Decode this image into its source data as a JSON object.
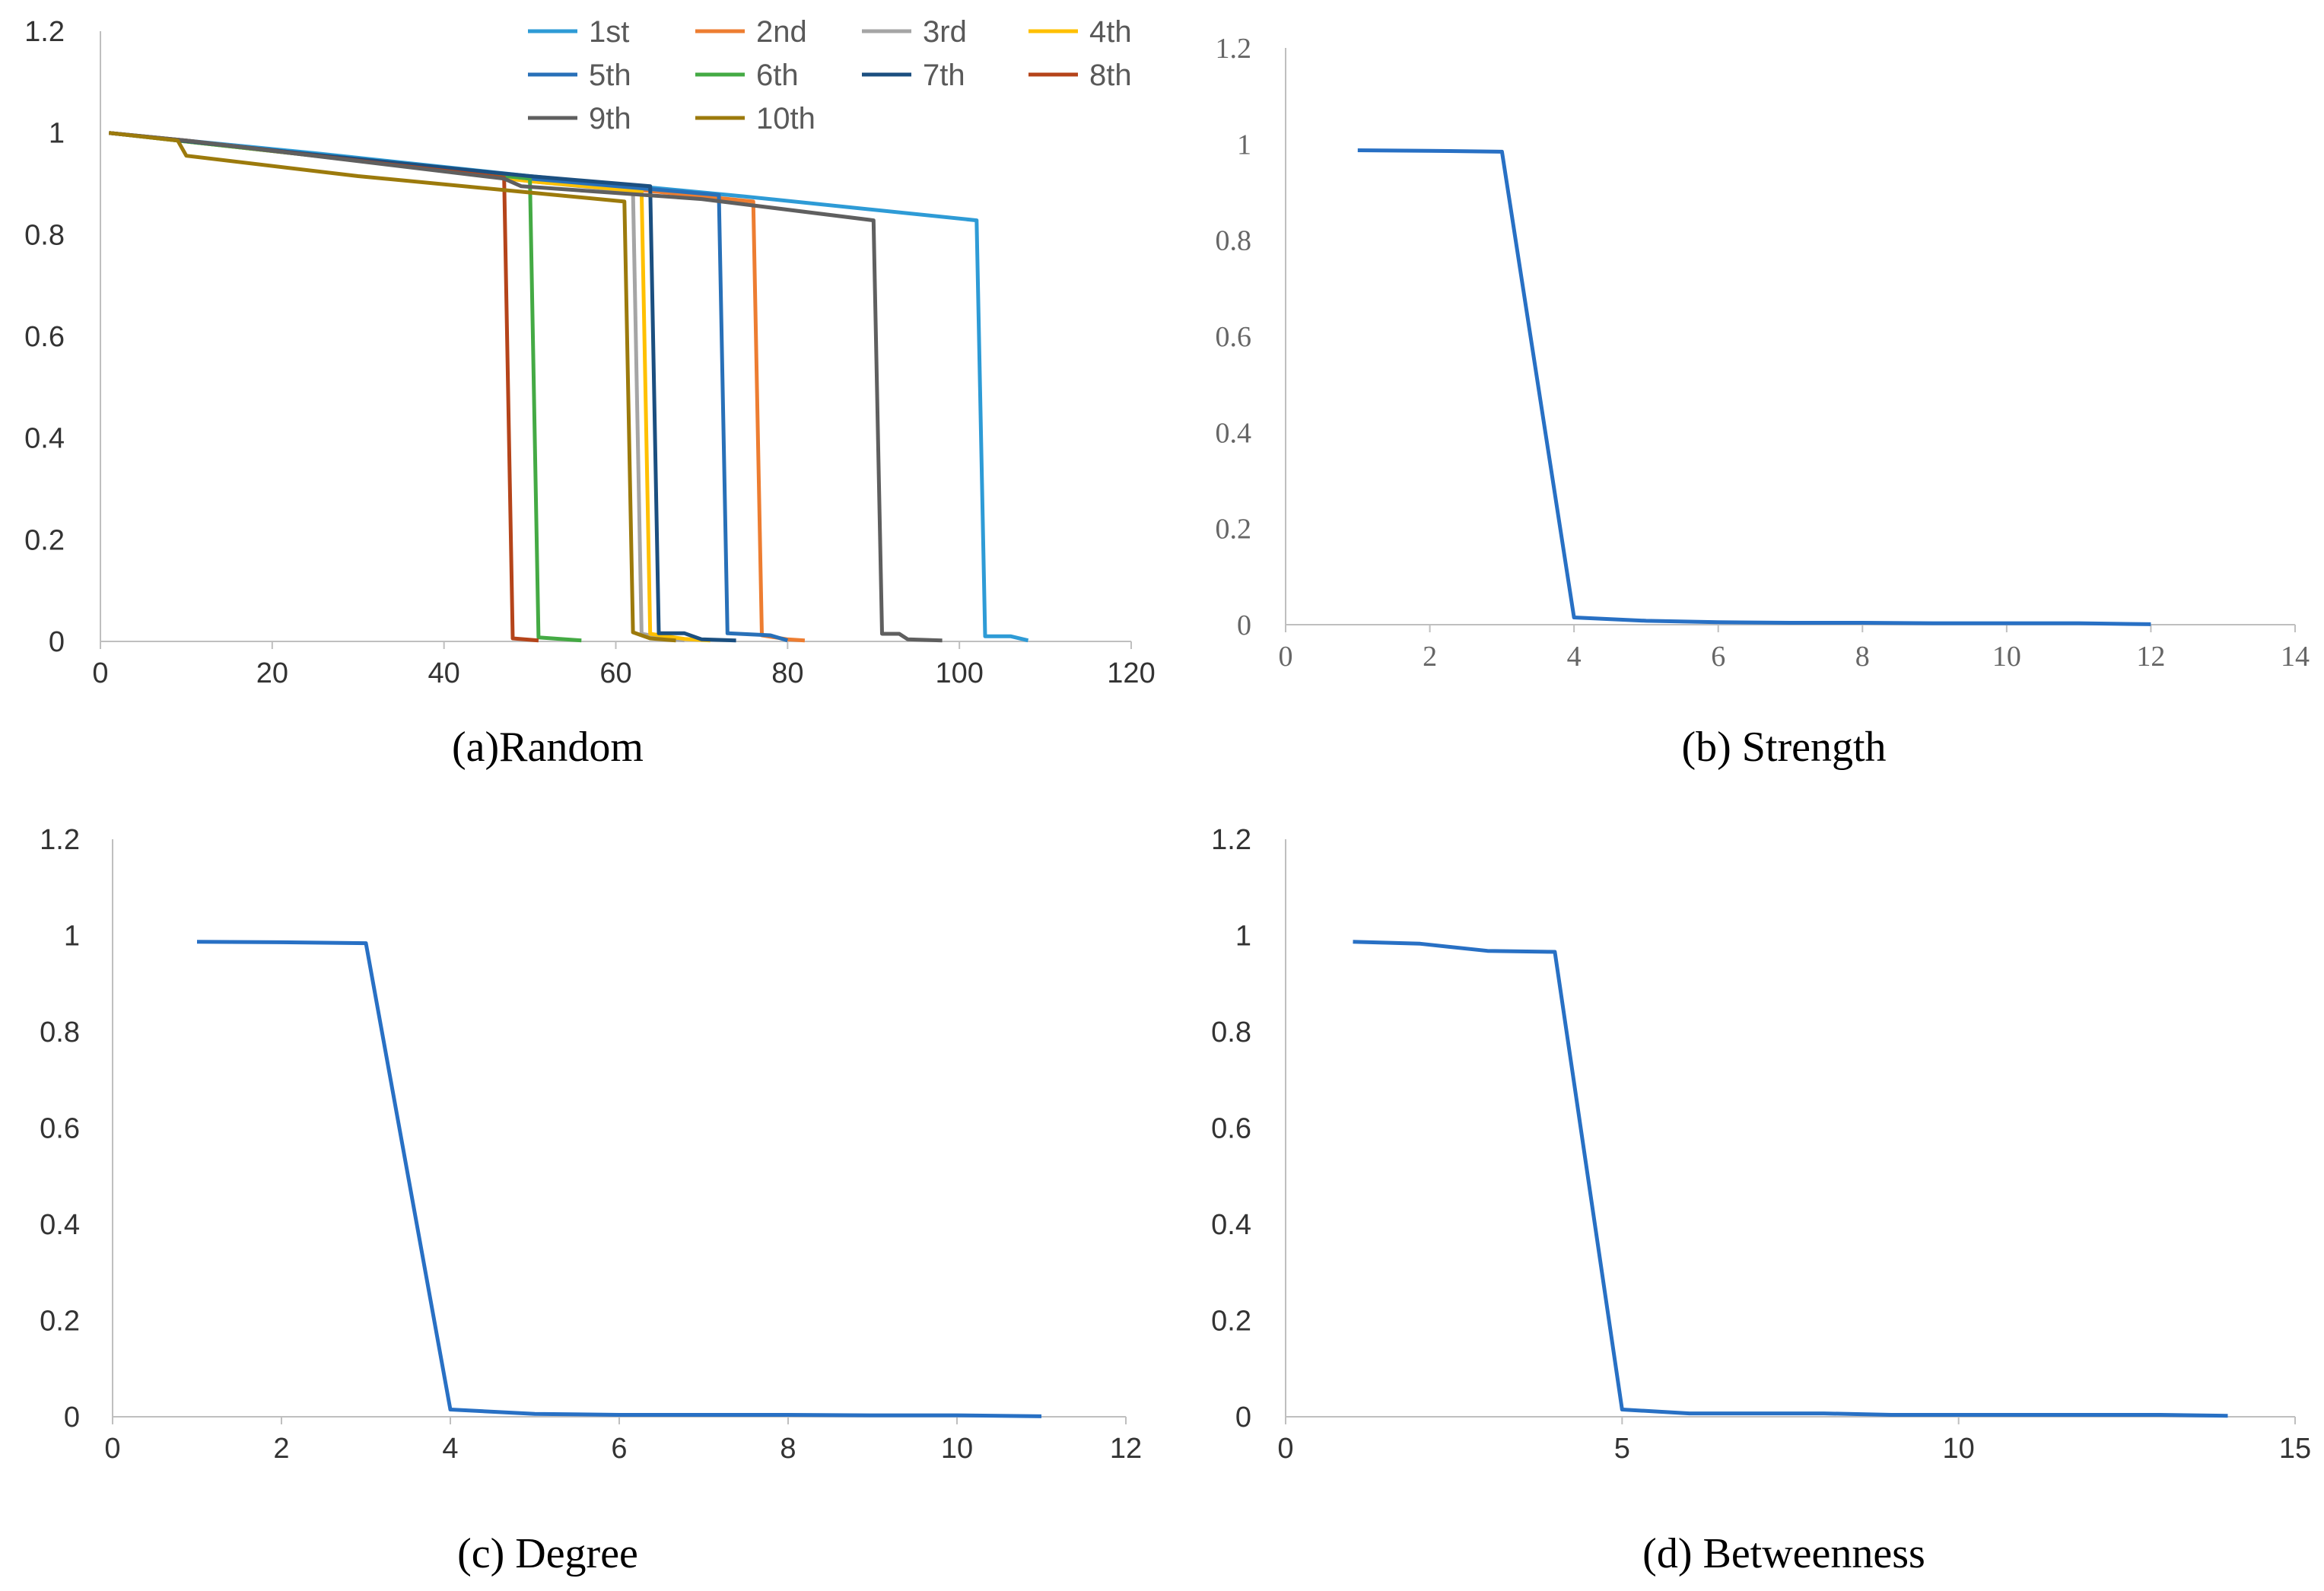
{
  "chart_data": [
    {
      "id": "a",
      "type": "line",
      "title": "(a)Random",
      "xlim": [
        0,
        120
      ],
      "ylim": [
        0,
        1.2
      ],
      "xticks": [
        "0",
        "20",
        "40",
        "60",
        "80",
        "100",
        "120"
      ],
      "yticks": [
        "0",
        "0.2",
        "0.4",
        "0.6",
        "0.8",
        "1",
        "1.2"
      ],
      "legend_position": "top-right",
      "series": [
        {
          "name": "1st",
          "color": "#2e9bd6",
          "points": [
            [
              1,
              1
            ],
            [
              25,
              0.96
            ],
            [
              50,
              0.915
            ],
            [
              75,
              0.875
            ],
            [
              102,
              0.828
            ],
            [
              103,
              0.01
            ],
            [
              106,
              0.01
            ],
            [
              108,
              0.002
            ]
          ]
        },
        {
          "name": "2nd",
          "color": "#ed7d31",
          "points": [
            [
              1,
              1
            ],
            [
              25,
              0.955
            ],
            [
              50,
              0.91
            ],
            [
              76,
              0.865
            ],
            [
              77,
              0.012
            ],
            [
              80,
              0.004
            ],
            [
              82,
              0.002
            ]
          ]
        },
        {
          "name": "3rd",
          "color": "#a5a5a5",
          "points": [
            [
              1,
              1
            ],
            [
              25,
              0.955
            ],
            [
              50,
              0.905
            ],
            [
              62,
              0.885
            ],
            [
              63,
              0.015
            ],
            [
              66,
              0.006
            ],
            [
              68,
              0.002
            ]
          ]
        },
        {
          "name": "4th",
          "color": "#ffc000",
          "points": [
            [
              1,
              1
            ],
            [
              25,
              0.955
            ],
            [
              50,
              0.905
            ],
            [
              63,
              0.885
            ],
            [
              64,
              0.015
            ],
            [
              68,
              0.005
            ],
            [
              71,
              0.002
            ]
          ]
        },
        {
          "name": "5th",
          "color": "#2870b8",
          "points": [
            [
              1,
              1
            ],
            [
              25,
              0.957
            ],
            [
              50,
              0.91
            ],
            [
              72,
              0.878
            ],
            [
              73,
              0.016
            ],
            [
              78,
              0.012
            ],
            [
              80,
              0.002
            ]
          ]
        },
        {
          "name": "6th",
          "color": "#44aa44",
          "points": [
            [
              1,
              1
            ],
            [
              25,
              0.955
            ],
            [
              50,
              0.91
            ],
            [
              51,
              0.008
            ],
            [
              56,
              0.002
            ]
          ]
        },
        {
          "name": "7th",
          "color": "#1b4f80",
          "points": [
            [
              1,
              1
            ],
            [
              25,
              0.957
            ],
            [
              50,
              0.915
            ],
            [
              64,
              0.895
            ],
            [
              65,
              0.016
            ],
            [
              68,
              0.016
            ],
            [
              70,
              0.004
            ],
            [
              74,
              0.002
            ]
          ]
        },
        {
          "name": "8th",
          "color": "#b5441a",
          "points": [
            [
              1,
              1
            ],
            [
              10,
              0.985
            ],
            [
              30,
              0.945
            ],
            [
              47,
              0.912
            ],
            [
              48,
              0.006
            ],
            [
              51,
              0.002
            ]
          ]
        },
        {
          "name": "9th",
          "color": "#5f5f5f",
          "points": [
            [
              1,
              1
            ],
            [
              10,
              0.985
            ],
            [
              47,
              0.91
            ],
            [
              49,
              0.895
            ],
            [
              70,
              0.87
            ],
            [
              90,
              0.828
            ],
            [
              91,
              0.015
            ],
            [
              93,
              0.015
            ],
            [
              94,
              0.004
            ],
            [
              98,
              0.002
            ]
          ]
        },
        {
          "name": "10th",
          "color": "#9c7a0c",
          "points": [
            [
              1,
              1
            ],
            [
              9,
              0.985
            ],
            [
              10,
              0.955
            ],
            [
              30,
              0.915
            ],
            [
              61,
              0.865
            ],
            [
              62,
              0.018
            ],
            [
              64,
              0.006
            ],
            [
              67,
              0.002
            ]
          ]
        }
      ]
    },
    {
      "id": "b",
      "type": "line",
      "title": "(b)  Strength",
      "xlim": [
        0,
        14
      ],
      "ylim": [
        0,
        1.2
      ],
      "xticks": [
        "0",
        "2",
        "4",
        "6",
        "8",
        "10",
        "12",
        "14"
      ],
      "yticks": [
        "0",
        "0.2",
        "0.4",
        "0.6",
        "0.8",
        "1",
        "1.2"
      ],
      "series": [
        {
          "name": "Strength",
          "color": "#2870c4",
          "points": [
            [
              1,
              0.987
            ],
            [
              2,
              0.986
            ],
            [
              3,
              0.984
            ],
            [
              4,
              0.015
            ],
            [
              5,
              0.008
            ],
            [
              6,
              0.005
            ],
            [
              7,
              0.004
            ],
            [
              8,
              0.004
            ],
            [
              9,
              0.003
            ],
            [
              10,
              0.003
            ],
            [
              11,
              0.003
            ],
            [
              12,
              0.001
            ]
          ]
        }
      ]
    },
    {
      "id": "c",
      "type": "line",
      "title": "(c) Degree",
      "xlim": [
        0,
        12
      ],
      "ylim": [
        0,
        1.2
      ],
      "xticks": [
        "0",
        "2",
        "4",
        "6",
        "8",
        "10",
        "12"
      ],
      "yticks": [
        "0",
        "0.2",
        "0.4",
        "0.6",
        "0.8",
        "1",
        "1.2"
      ],
      "series": [
        {
          "name": "Degree",
          "color": "#2870c4",
          "points": [
            [
              1,
              0.987
            ],
            [
              2,
              0.986
            ],
            [
              3,
              0.984
            ],
            [
              4,
              0.015
            ],
            [
              5,
              0.006
            ],
            [
              6,
              0.004
            ],
            [
              7,
              0.004
            ],
            [
              8,
              0.004
            ],
            [
              9,
              0.003
            ],
            [
              10,
              0.003
            ],
            [
              11,
              0.001
            ]
          ]
        }
      ]
    },
    {
      "id": "d",
      "type": "line",
      "title": "(d) Betweenness",
      "xlim": [
        0,
        15
      ],
      "ylim": [
        0,
        1.2
      ],
      "xticks": [
        "0",
        "5",
        "10",
        "15"
      ],
      "yticks": [
        "0",
        "0.2",
        "0.4",
        "0.6",
        "0.8",
        "1",
        "1.2"
      ],
      "series": [
        {
          "name": "Betweenness",
          "color": "#2870c4",
          "points": [
            [
              1,
              0.987
            ],
            [
              2,
              0.983
            ],
            [
              3,
              0.968
            ],
            [
              4,
              0.966
            ],
            [
              5,
              0.015
            ],
            [
              6,
              0.007
            ],
            [
              7,
              0.007
            ],
            [
              8,
              0.007
            ],
            [
              9,
              0.004
            ],
            [
              10,
              0.004
            ],
            [
              11,
              0.004
            ],
            [
              12,
              0.004
            ],
            [
              13,
              0.004
            ],
            [
              14,
              0.002
            ]
          ]
        }
      ]
    }
  ]
}
